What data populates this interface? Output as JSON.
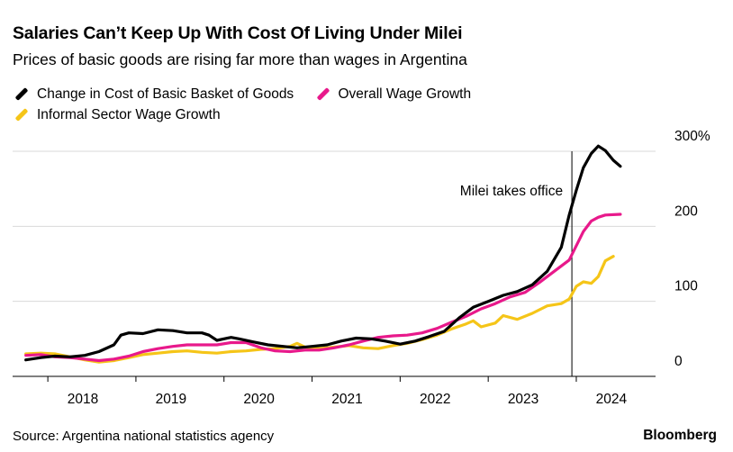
{
  "header": {
    "title": "Salaries Can’t Keep Up With Cost Of Living Under Milei",
    "subtitle": "Prices of basic goods are rising far more than wages in Argentina"
  },
  "footer": {
    "source": "Source: Argentina national statistics agency",
    "brand": "Bloomberg"
  },
  "chart_data": {
    "type": "line",
    "title": "Salaries Can’t Keep Up With Cost Of Living Under Milei",
    "subtitle": "Prices of basic goods are rising far more than wages in Argentina",
    "xlabel": "",
    "ylabel": "",
    "x_tick_labels": [
      "2018",
      "2019",
      "2020",
      "2021",
      "2022",
      "2023",
      "2024"
    ],
    "y_tick_labels": [
      "0",
      "100",
      "200",
      "300%"
    ],
    "y_ticks": [
      0,
      100,
      200,
      300
    ],
    "xlim": [
      2017.6,
      2024.9
    ],
    "ylim": [
      0,
      300
    ],
    "grid": "horizontal",
    "legend_position": "top-left",
    "annotation": {
      "text": "Milei takes office",
      "x": 2023.95
    },
    "series": [
      {
        "name": "Change in Cost of Basic Basket of Goods",
        "color": "#000000",
        "points": [
          [
            2017.75,
            22
          ],
          [
            2017.92,
            25
          ],
          [
            2018.08,
            27
          ],
          [
            2018.25,
            26
          ],
          [
            2018.42,
            28
          ],
          [
            2018.58,
            33
          ],
          [
            2018.75,
            42
          ],
          [
            2018.83,
            55
          ],
          [
            2018.92,
            58
          ],
          [
            2019.08,
            57
          ],
          [
            2019.25,
            62
          ],
          [
            2019.42,
            61
          ],
          [
            2019.58,
            58
          ],
          [
            2019.75,
            58
          ],
          [
            2019.83,
            55
          ],
          [
            2019.92,
            48
          ],
          [
            2020.08,
            52
          ],
          [
            2020.17,
            50
          ],
          [
            2020.33,
            46
          ],
          [
            2020.5,
            42
          ],
          [
            2020.67,
            40
          ],
          [
            2020.83,
            38
          ],
          [
            2021.0,
            40
          ],
          [
            2021.17,
            42
          ],
          [
            2021.33,
            47
          ],
          [
            2021.5,
            51
          ],
          [
            2021.67,
            50
          ],
          [
            2021.83,
            47
          ],
          [
            2022.0,
            43
          ],
          [
            2022.17,
            47
          ],
          [
            2022.33,
            53
          ],
          [
            2022.5,
            60
          ],
          [
            2022.67,
            78
          ],
          [
            2022.83,
            92
          ],
          [
            2023.0,
            100
          ],
          [
            2023.17,
            108
          ],
          [
            2023.33,
            113
          ],
          [
            2023.5,
            122
          ],
          [
            2023.67,
            140
          ],
          [
            2023.83,
            172
          ],
          [
            2023.92,
            215
          ],
          [
            2024.0,
            248
          ],
          [
            2024.08,
            278
          ],
          [
            2024.17,
            297
          ],
          [
            2024.25,
            307
          ],
          [
            2024.33,
            301
          ],
          [
            2024.42,
            288
          ],
          [
            2024.5,
            280
          ]
        ]
      },
      {
        "name": "Overall Wage Growth",
        "color": "#e8198b",
        "points": [
          [
            2017.75,
            28
          ],
          [
            2017.92,
            29
          ],
          [
            2018.08,
            26
          ],
          [
            2018.25,
            25
          ],
          [
            2018.42,
            23
          ],
          [
            2018.58,
            21
          ],
          [
            2018.75,
            23
          ],
          [
            2018.92,
            27
          ],
          [
            2019.08,
            33
          ],
          [
            2019.25,
            37
          ],
          [
            2019.42,
            40
          ],
          [
            2019.58,
            42
          ],
          [
            2019.75,
            42
          ],
          [
            2019.92,
            42
          ],
          [
            2020.08,
            45
          ],
          [
            2020.25,
            45
          ],
          [
            2020.42,
            38
          ],
          [
            2020.58,
            34
          ],
          [
            2020.75,
            33
          ],
          [
            2020.92,
            35
          ],
          [
            2021.08,
            35
          ],
          [
            2021.25,
            38
          ],
          [
            2021.42,
            42
          ],
          [
            2021.58,
            47
          ],
          [
            2021.75,
            52
          ],
          [
            2021.92,
            54
          ],
          [
            2022.08,
            55
          ],
          [
            2022.25,
            58
          ],
          [
            2022.42,
            64
          ],
          [
            2022.58,
            72
          ],
          [
            2022.75,
            80
          ],
          [
            2022.92,
            90
          ],
          [
            2023.08,
            97
          ],
          [
            2023.25,
            106
          ],
          [
            2023.42,
            112
          ],
          [
            2023.58,
            125
          ],
          [
            2023.75,
            140
          ],
          [
            2023.92,
            155
          ],
          [
            2024.08,
            193
          ],
          [
            2024.17,
            207
          ],
          [
            2024.25,
            212
          ],
          [
            2024.33,
            215
          ],
          [
            2024.5,
            216
          ]
        ]
      },
      {
        "name": "Informal Sector Wage Growth",
        "color": "#f5c518",
        "points": [
          [
            2017.75,
            30
          ],
          [
            2017.92,
            31
          ],
          [
            2018.08,
            30
          ],
          [
            2018.25,
            26
          ],
          [
            2018.42,
            22
          ],
          [
            2018.58,
            19
          ],
          [
            2018.75,
            21
          ],
          [
            2018.92,
            25
          ],
          [
            2019.08,
            29
          ],
          [
            2019.25,
            31
          ],
          [
            2019.42,
            33
          ],
          [
            2019.58,
            34
          ],
          [
            2019.75,
            32
          ],
          [
            2019.92,
            31
          ],
          [
            2020.08,
            33
          ],
          [
            2020.25,
            34
          ],
          [
            2020.42,
            36
          ],
          [
            2020.58,
            37
          ],
          [
            2020.75,
            40
          ],
          [
            2020.83,
            44
          ],
          [
            2020.92,
            39
          ],
          [
            2021.08,
            37
          ],
          [
            2021.25,
            39
          ],
          [
            2021.42,
            41
          ],
          [
            2021.58,
            38
          ],
          [
            2021.75,
            37
          ],
          [
            2021.92,
            41
          ],
          [
            2022.08,
            44
          ],
          [
            2022.25,
            49
          ],
          [
            2022.42,
            55
          ],
          [
            2022.58,
            63
          ],
          [
            2022.75,
            70
          ],
          [
            2022.83,
            74
          ],
          [
            2022.92,
            66
          ],
          [
            2023.08,
            71
          ],
          [
            2023.17,
            81
          ],
          [
            2023.33,
            76
          ],
          [
            2023.5,
            84
          ],
          [
            2023.67,
            94
          ],
          [
            2023.83,
            97
          ],
          [
            2023.92,
            103
          ],
          [
            2024.0,
            120
          ],
          [
            2024.08,
            126
          ],
          [
            2024.17,
            124
          ],
          [
            2024.25,
            133
          ],
          [
            2024.33,
            154
          ],
          [
            2024.42,
            160
          ]
        ]
      }
    ]
  }
}
